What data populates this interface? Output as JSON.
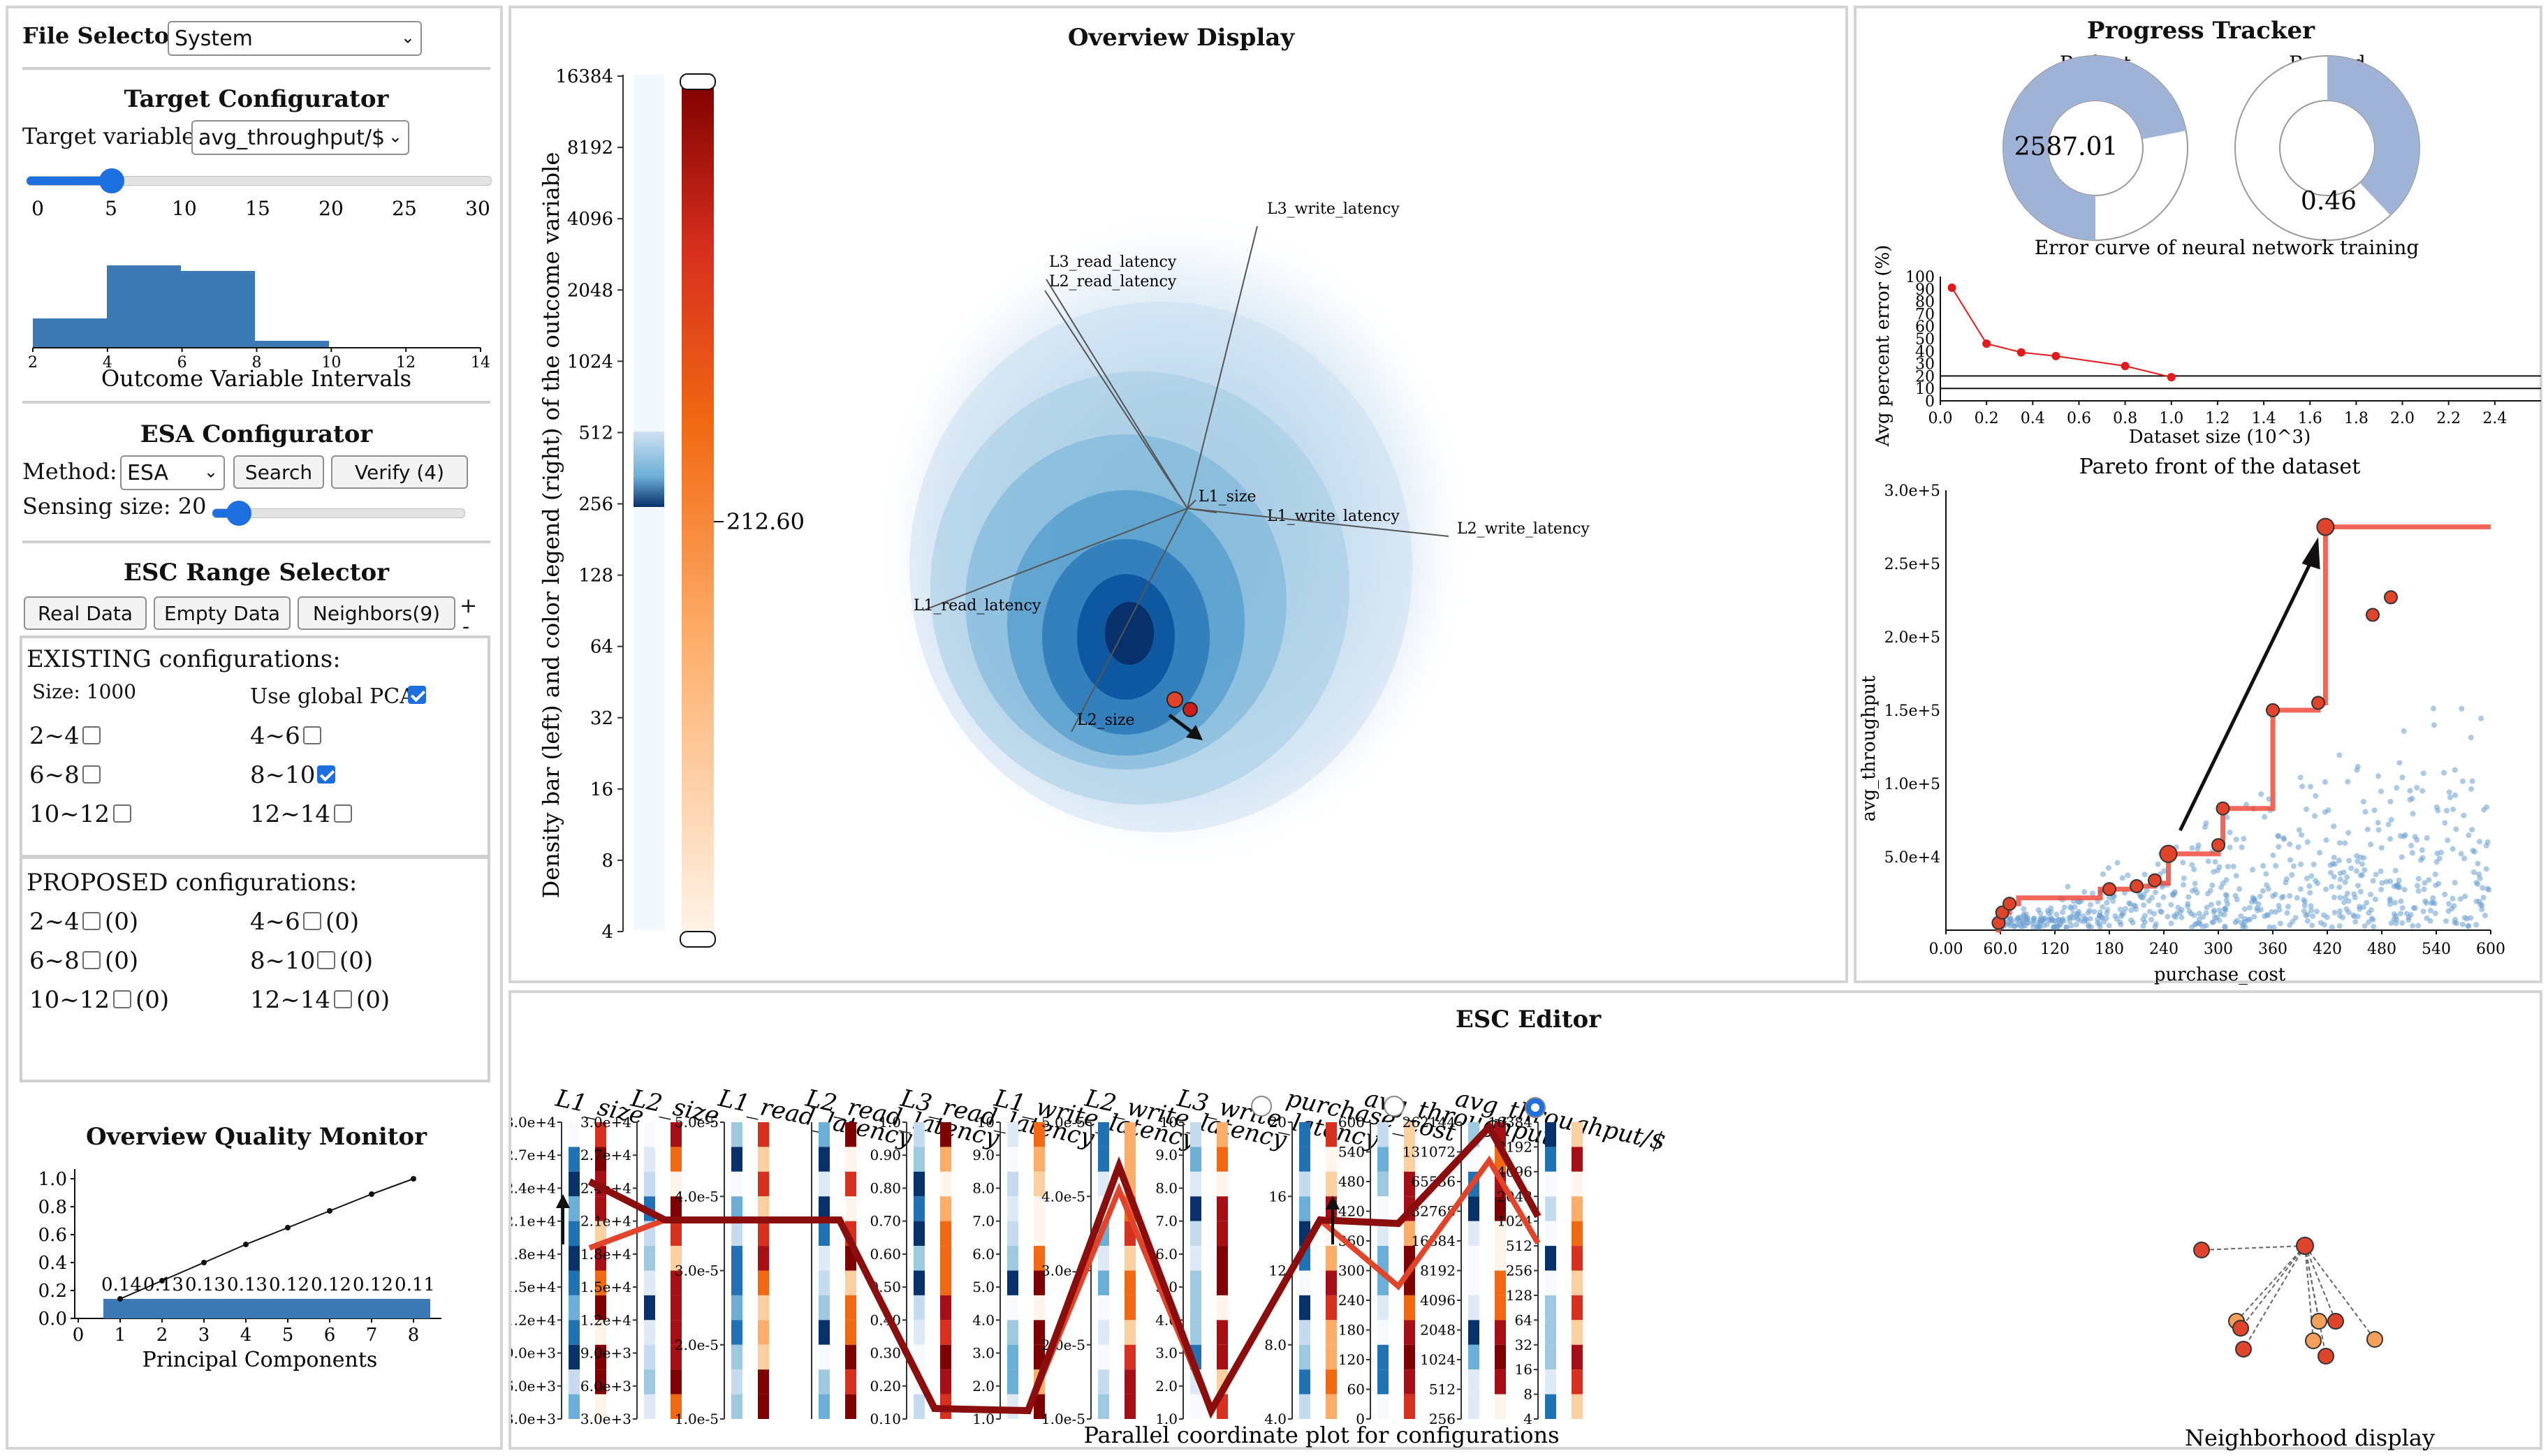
{
  "file_selector": {
    "label": "File Selector",
    "value": "System"
  },
  "target_configurator": {
    "title": "Target Configurator",
    "target_label": "Target variable:",
    "target_value": "avg_throughput/$",
    "slider_ticks": [
      "0",
      "5",
      "10",
      "15",
      "20",
      "25",
      "30"
    ],
    "slider_value": 5,
    "hist_ticks": [
      "2",
      "4",
      "6",
      "8",
      "10",
      "12",
      "14"
    ],
    "hist_label": "Outcome Variable Intervals"
  },
  "esa_configurator": {
    "title": "ESA Configurator",
    "method_label": "Method:",
    "method_value": "ESA",
    "search_label": "Search",
    "verify_label": "Verify (4)",
    "sensing_label": "Sensing size: 20"
  },
  "esc_range_selector": {
    "title": "ESC Range Selector",
    "btn_real": "Real Data",
    "btn_empty": "Empty Data",
    "btn_neighbors": "Neighbors(9)",
    "plus": "+",
    "minus": "-",
    "existing_title": "EXISTING configurations:",
    "size_label": "Size: 1000",
    "global_pca_label": "Use global PCA",
    "existing_ranges": [
      {
        "label": "2~4",
        "checked": false
      },
      {
        "label": "4~6",
        "checked": false
      },
      {
        "label": "6~8",
        "checked": false
      },
      {
        "label": "8~10",
        "checked": true
      },
      {
        "label": "10~12",
        "checked": false
      },
      {
        "label": "12~14",
        "checked": false
      }
    ],
    "proposed_title": "PROPOSED configurations:",
    "proposed_ranges": [
      {
        "label": "2~4",
        "count": "(0)"
      },
      {
        "label": "4~6",
        "count": "(0)"
      },
      {
        "label": "6~8",
        "count": "(0)"
      },
      {
        "label": "8~10",
        "count": "(0)"
      },
      {
        "label": "10~12",
        "count": "(0)"
      },
      {
        "label": "12~14",
        "count": "(0)"
      }
    ]
  },
  "quality_monitor": {
    "title": "Overview Quality Monitor",
    "xlabel": "Principal Components",
    "y_ticks": [
      "0.0",
      "0.2",
      "0.4",
      "0.6",
      "0.8",
      "1.0"
    ],
    "x_ticks": [
      "0",
      "1",
      "2",
      "3",
      "4",
      "5",
      "6",
      "7",
      "8"
    ],
    "bar_labels": [
      "0.14",
      "0.13",
      "0.13",
      "0.13",
      "0.12",
      "0.12",
      "0.12",
      "0.11"
    ]
  },
  "overview": {
    "title": "Overview Display",
    "axis_label": "Density bar (left) and color legend (right) of the outcome variable",
    "scale_ticks": [
      "16384",
      "8192",
      "4096",
      "2048",
      "1024",
      "512",
      "256",
      "128",
      "64",
      "32",
      "16",
      "8",
      "4"
    ],
    "current_value": "212.60",
    "vectors": [
      "L3_write_latency",
      "L3_read_latency",
      "L2_read_latency",
      "L1_size",
      "L1_write_latency",
      "L2_write_latency",
      "L1_read_latency",
      "L2_size"
    ]
  },
  "progress_tracker": {
    "title": "Progress Tracker",
    "budget_label": "Budget",
    "budget_value": "2587.01",
    "budget_fraction": 0.72,
    "reward_label": "Reward",
    "reward_value": "0.46",
    "reward_fraction": 0.38,
    "error_title": "Error curve of neural network training",
    "error_ylabel": "Avg percent error (%)",
    "error_xlabel": "Dataset size (10^3)",
    "error_yticks": [
      "0",
      "10",
      "20",
      "30",
      "40",
      "50",
      "60",
      "70",
      "80",
      "90",
      "100"
    ],
    "error_xticks": [
      "0.0",
      "0.2",
      "0.4",
      "0.6",
      "0.8",
      "1.0",
      "1.2",
      "1.4",
      "1.6",
      "1.8",
      "2.0",
      "2.2",
      "2.4"
    ],
    "pareto_title": "Pareto front of the dataset",
    "pareto_xlabel": "purchase_cost",
    "pareto_ylabel": "avg_throughput",
    "pareto_yticks": [
      "3.0e+5",
      "2.5e+5",
      "2.0e+5",
      "1.5e+5",
      "1.0e+5",
      "5.0e+4"
    ],
    "pareto_xticks": [
      "0.00",
      "60.0",
      "120",
      "180",
      "240",
      "300",
      "360",
      "420",
      "480",
      "540",
      "600"
    ]
  },
  "esc_editor": {
    "title": "ESC Editor",
    "footer": "Parallel coordinate plot for configurations",
    "neighborhood_label": "Neighborhood display",
    "axes": [
      {
        "name": "L1_size",
        "ticks": [
          "3.0e+4",
          "2.7e+4",
          "2.4e+4",
          "2.1e+4",
          "1.8e+4",
          "1.5e+4",
          "1.2e+4",
          "9.0e+3",
          "6.0e+3",
          "3.0e+3"
        ]
      },
      {
        "name": "L2_size",
        "ticks": [
          "3.0e+4",
          "2.7e+4",
          "2.4e+4",
          "2.1e+4",
          "1.8e+4",
          "1.5e+4",
          "1.2e+4",
          "9.0e+3",
          "6.0e+3",
          "3.0e+3"
        ]
      },
      {
        "name": "L1_read_latency",
        "ticks": [
          "5.0e-5",
          "4.0e-5",
          "3.0e-5",
          "2.0e-5",
          "1.0e-5"
        ]
      },
      {
        "name": "L2_read_latency",
        "ticks": []
      },
      {
        "name": "L3_read_latency",
        "ticks": [
          "1.0",
          "0.90",
          "0.80",
          "0.70",
          "0.60",
          "0.50",
          "0.40",
          "0.30",
          "0.20",
          "0.10"
        ]
      },
      {
        "name": "L1_write_latency",
        "ticks": [
          "10",
          "9.0",
          "8.0",
          "7.0",
          "6.0",
          "5.0",
          "4.0",
          "3.0",
          "2.0",
          "1.0"
        ]
      },
      {
        "name": "L2_write_latency",
        "ticks": [
          "5.0e-5",
          "4.0e-5",
          "3.0e-5",
          "2.0e-5",
          "1.0e-5"
        ]
      },
      {
        "name": "L3_write_latency",
        "ticks": [
          "10",
          "9.0",
          "8.0",
          "7.0",
          "6.0",
          "5.0",
          "4.0",
          "3.0",
          "2.0",
          "1.0"
        ]
      },
      {
        "name": "purchase_cost",
        "ticks": [
          "20",
          "16",
          "12",
          "8.0",
          "4.0"
        ]
      },
      {
        "name": "avg_throughput",
        "ticks": [
          "600",
          "540",
          "480",
          "420",
          "360",
          "300",
          "240",
          "180",
          "120",
          "60",
          "0"
        ]
      },
      {
        "name": "avg_throughput/$",
        "ticks": [
          "262144",
          "131072",
          "65536",
          "32768",
          "16384",
          "8192",
          "4096",
          "2048",
          "1024",
          "512",
          "256"
        ]
      },
      {
        "name": "",
        "ticks": [
          "16384",
          "8192",
          "4096",
          "2048",
          "1024",
          "512",
          "256",
          "128",
          "64",
          "32",
          "16",
          "8",
          "4"
        ]
      }
    ]
  }
}
